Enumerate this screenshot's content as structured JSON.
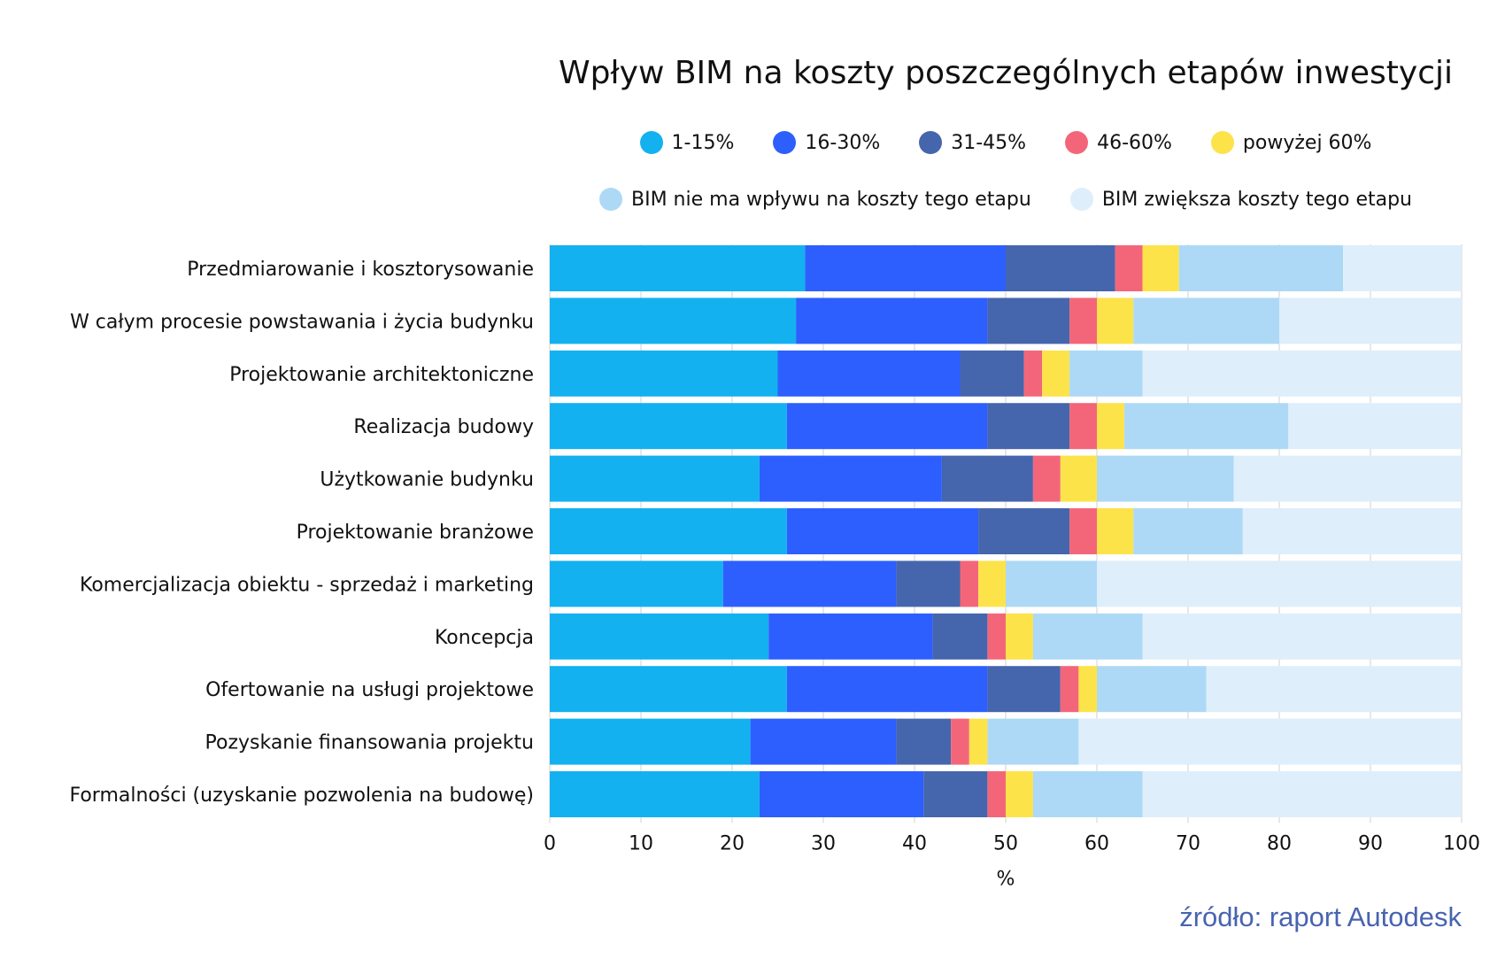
{
  "chart_data": {
    "type": "bar",
    "orientation": "horizontal",
    "stacked": true,
    "title": "Wpływ BIM na koszty poszczególnych etapów inwestycji",
    "xlabel": "%",
    "ylabel": "",
    "xlim": [
      0,
      100
    ],
    "xticks": [
      "0",
      "10",
      "20",
      "30",
      "40",
      "50",
      "60",
      "70",
      "80",
      "90",
      "100"
    ],
    "grid": "vertical",
    "legend_position": "top",
    "categories": [
      "Przedmiarowanie i kosztorysowanie",
      "W całym procesie powstawania i życia budynku",
      "Projektowanie architektoniczne",
      "Realizacja budowy",
      "Użytkowanie budynku",
      "Projektowanie branżowe",
      "Komercjalizacja obiektu - sprzedaż i marketing",
      "Koncepcja",
      "Ofertowanie na usługi projektowe",
      "Pozyskanie finansowania projektu",
      "Formalności (uzyskanie pozwolenia na budowę)"
    ],
    "series": [
      {
        "name": "1-15%",
        "color": "#13b1f0",
        "values": [
          28,
          27,
          25,
          26,
          23,
          26,
          19,
          24,
          26,
          22,
          23
        ]
      },
      {
        "name": "16-30%",
        "color": "#2d5fff",
        "values": [
          22,
          21,
          20,
          22,
          20,
          21,
          19,
          18,
          22,
          16,
          18
        ]
      },
      {
        "name": "31-45%",
        "color": "#4566ad",
        "values": [
          12,
          9,
          7,
          9,
          10,
          10,
          7,
          6,
          8,
          6,
          7
        ]
      },
      {
        "name": "46-60%",
        "color": "#f3667a",
        "values": [
          3,
          3,
          2,
          3,
          3,
          3,
          2,
          2,
          2,
          2,
          2
        ]
      },
      {
        "name": "powyżej 60%",
        "color": "#fce34a",
        "values": [
          4,
          4,
          3,
          3,
          4,
          4,
          3,
          3,
          2,
          2,
          3
        ]
      },
      {
        "name": "BIM nie ma wpływu na koszty tego etapu",
        "color": "#add9f6",
        "values": [
          18,
          16,
          8,
          18,
          15,
          12,
          10,
          12,
          12,
          10,
          12
        ]
      },
      {
        "name": "BIM zwiększa koszty tego etapu",
        "color": "#deeefb",
        "values": [
          13,
          20,
          35,
          19,
          25,
          24,
          40,
          35,
          28,
          42,
          35
        ]
      }
    ]
  },
  "source": "źródło: raport Autodesk"
}
